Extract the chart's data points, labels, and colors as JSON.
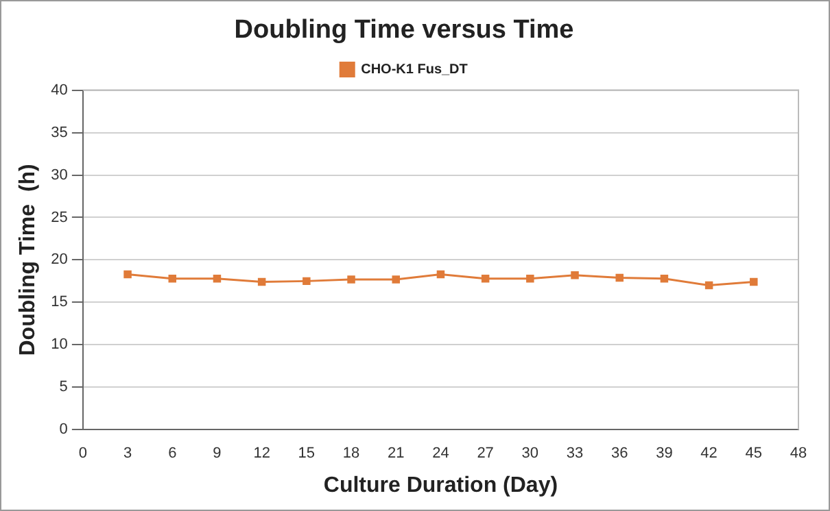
{
  "chart_data": {
    "type": "line",
    "title": "Doubling Time versus Time",
    "xlabel": "Culture Duration (Day)",
    "ylabel": "Doubling Time  (h)",
    "x": [
      3,
      6,
      9,
      12,
      15,
      18,
      21,
      24,
      27,
      30,
      33,
      36,
      39,
      42,
      45
    ],
    "series": [
      {
        "name": "CHO-K1 Fus_DT",
        "color": "#e07b39",
        "values": [
          18.3,
          17.8,
          17.8,
          17.4,
          17.5,
          17.7,
          17.7,
          18.3,
          17.8,
          17.8,
          18.2,
          17.9,
          17.8,
          17.0,
          17.4
        ]
      }
    ],
    "xlim": [
      0,
      48
    ],
    "xticks": [
      0,
      3,
      6,
      9,
      12,
      15,
      18,
      21,
      24,
      27,
      30,
      33,
      36,
      39,
      42,
      45,
      48
    ],
    "ylim": [
      0,
      40
    ],
    "yticks": [
      0,
      5,
      10,
      15,
      20,
      25,
      30,
      35,
      40
    ],
    "grid": "y",
    "legend": "top",
    "marker": "square",
    "line_style": "solid"
  }
}
